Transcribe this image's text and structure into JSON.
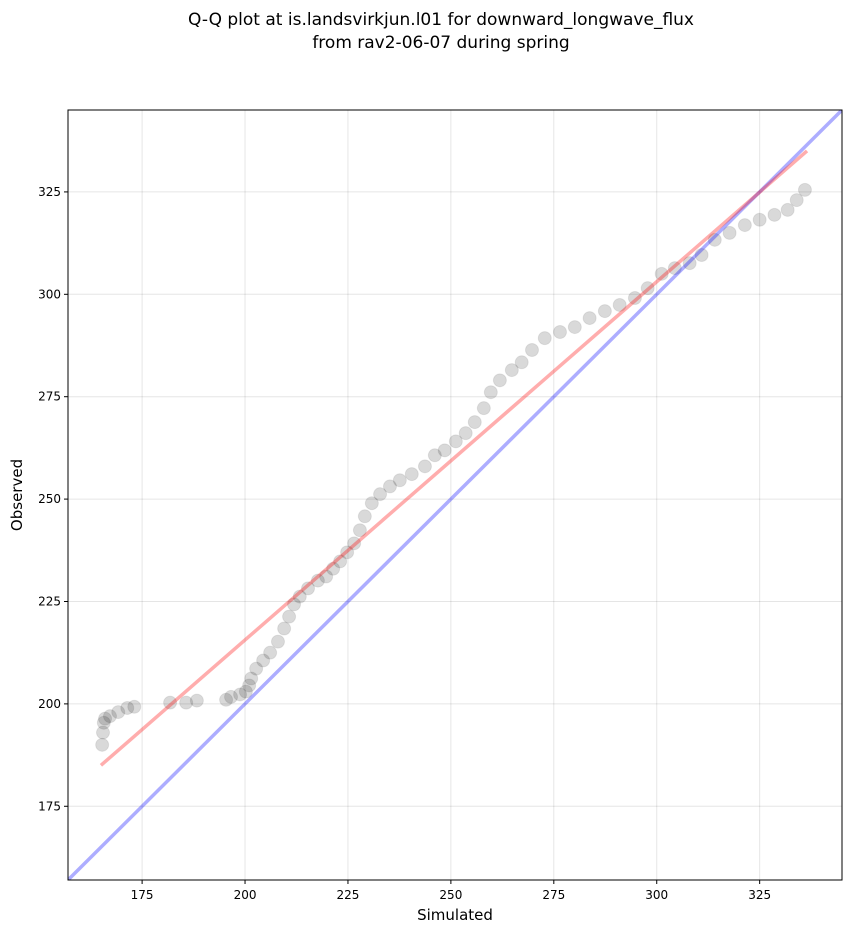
{
  "chart_data": {
    "type": "scatter",
    "title": [
      "Q-Q plot at is.landsvirkjun.l01 for downward_longwave_flux",
      "from rav2-06-07 during spring"
    ],
    "x_label": "Simulated",
    "y_label": "Observed",
    "xlim": [
      157,
      345
    ],
    "ylim": [
      157,
      345
    ],
    "xticks": [
      175,
      200,
      225,
      250,
      275,
      300,
      325
    ],
    "yticks": [
      175,
      200,
      225,
      250,
      275,
      300,
      325
    ],
    "grid": true,
    "series": [
      {
        "color": "#000000",
        "x": [
          165.3,
          165.5,
          165.7,
          166,
          167.2,
          169.2,
          171.4,
          173.1,
          181.8,
          185.7,
          188.3,
          195.4,
          196.6,
          198.8,
          200.2,
          201,
          201.5,
          202.7,
          204.4,
          206.1,
          208,
          209.5,
          210.7,
          211.9,
          213.3,
          215.3,
          217.7,
          219.7,
          221.4,
          223.1,
          224.8,
          226.5,
          227.9,
          229.1,
          230.8,
          232.8,
          235.2,
          237.6,
          240.5,
          243.7,
          246.1,
          248.5,
          251.2,
          253.6,
          255.8,
          258,
          259.7,
          261.9,
          264.8,
          267.2,
          269.7,
          272.8,
          276.5,
          280.1,
          283.7,
          287.4,
          291,
          294.7,
          297.8,
          301.2,
          304.4,
          308,
          310.9,
          314.1,
          317.7,
          321.4,
          325,
          328.6,
          331.8,
          334,
          336
        ],
        "values": [
          190,
          193,
          195.4,
          196.4,
          197,
          198,
          199,
          199.3,
          200.3,
          200.3,
          200.8,
          201,
          201.7,
          202.3,
          203,
          204.5,
          206.2,
          208.6,
          210.6,
          212.5,
          215.2,
          218.4,
          221.3,
          224.3,
          226.2,
          228.2,
          230.1,
          231.1,
          233,
          234.8,
          237,
          239.2,
          242.4,
          245.8,
          249,
          251.2,
          253.1,
          254.6,
          256.1,
          258,
          260.7,
          261.9,
          264.1,
          266.1,
          268.8,
          272.2,
          276.1,
          279,
          281.5,
          283.4,
          286.4,
          289.3,
          290.8,
          292,
          294.2,
          295.9,
          297.4,
          299.1,
          301.5,
          305,
          306.4,
          307.6,
          309.6,
          313.3,
          315,
          316.9,
          318.2,
          319.4,
          320.6,
          323,
          325.5
        ]
      }
    ],
    "lines": [
      {
        "color": "#0000ff",
        "x": [
          157,
          345
        ],
        "values": [
          157,
          345
        ]
      },
      {
        "color": "#ff0000",
        "x": [
          165,
          336.5
        ],
        "values": [
          185,
          335
        ]
      }
    ]
  }
}
